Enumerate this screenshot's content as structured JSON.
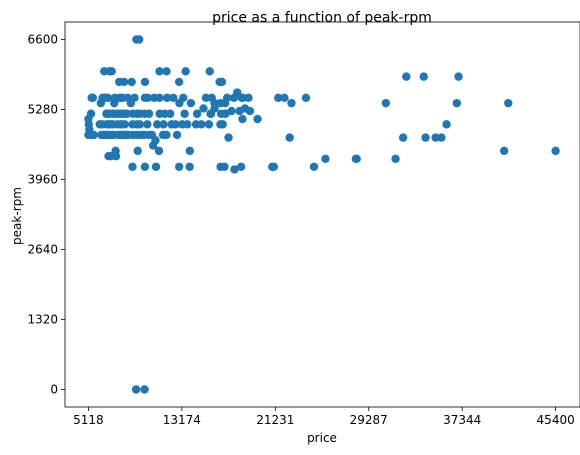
{
  "chart_data": {
    "type": "scatter",
    "title": "price as a function of peak-rpm",
    "xlabel": "price",
    "ylabel": "peak-rpm",
    "xticks": [
      5118,
      13174,
      21231,
      29287,
      37344,
      45400
    ],
    "yticks": [
      0,
      1320,
      2640,
      3960,
      5280,
      6600
    ],
    "xlim": [
      3100,
      47500
    ],
    "ylim": [
      -330,
      6930
    ],
    "grid": false,
    "marker_color": "#1f77b4",
    "points": [
      [
        5118,
        5100
      ],
      [
        5118,
        4800
      ],
      [
        5151,
        5000
      ],
      [
        5195,
        4900
      ],
      [
        5348,
        5200
      ],
      [
        5389,
        4800
      ],
      [
        5399,
        5500
      ],
      [
        5499,
        5500
      ],
      [
        5572,
        4800
      ],
      [
        6095,
        5000
      ],
      [
        6189,
        5400
      ],
      [
        6229,
        4800
      ],
      [
        6295,
        5000
      ],
      [
        6338,
        5500
      ],
      [
        6377,
        4800
      ],
      [
        6479,
        6000
      ],
      [
        6488,
        5500
      ],
      [
        6529,
        4800
      ],
      [
        6575,
        5500
      ],
      [
        6649,
        4800
      ],
      [
        6669,
        5200
      ],
      [
        6692,
        5000
      ],
      [
        6695,
        4800
      ],
      [
        6785,
        5200
      ],
      [
        6795,
        5500
      ],
      [
        6849,
        4400
      ],
      [
        6855,
        5000
      ],
      [
        6918,
        4800
      ],
      [
        6938,
        6000
      ],
      [
        6989,
        5200
      ],
      [
        7053,
        4400
      ],
      [
        7099,
        5000
      ],
      [
        7126,
        6000
      ],
      [
        7129,
        4800
      ],
      [
        7198,
        5000
      ],
      [
        7295,
        5200
      ],
      [
        7299,
        4800
      ],
      [
        7349,
        5400
      ],
      [
        7395,
        5500
      ],
      [
        7463,
        4500
      ],
      [
        7499,
        4400
      ],
      [
        7603,
        5200
      ],
      [
        7609,
        5000
      ],
      [
        7689,
        4800
      ],
      [
        7738,
        5200
      ],
      [
        7775,
        5800
      ],
      [
        7788,
        4800
      ],
      [
        7799,
        5500
      ],
      [
        7895,
        5000
      ],
      [
        7898,
        5200
      ],
      [
        7957,
        4800
      ],
      [
        7975,
        5500
      ],
      [
        7995,
        5200
      ],
      [
        7999,
        5000
      ],
      [
        8013,
        4800
      ],
      [
        8058,
        5500
      ],
      [
        8189,
        4800
      ],
      [
        8195,
        5800
      ],
      [
        8238,
        5200
      ],
      [
        8249,
        5000
      ],
      [
        8358,
        4800
      ],
      [
        8449,
        5200
      ],
      [
        8495,
        4800
      ],
      [
        8499,
        5500
      ],
      [
        8558,
        4800
      ],
      [
        8778,
        5400
      ],
      [
        8845,
        5800
      ],
      [
        8916,
        4200
      ],
      [
        8921,
        5000
      ],
      [
        8948,
        5200
      ],
      [
        8949,
        4800
      ],
      [
        9095,
        5500
      ],
      [
        9233,
        0
      ],
      [
        9258,
        6600
      ],
      [
        9279,
        4800
      ],
      [
        9295,
        5000
      ],
      [
        9298,
        5200
      ],
      [
        9370,
        4500
      ],
      [
        9495,
        6600
      ],
      [
        9538,
        5200
      ],
      [
        9549,
        5000
      ],
      [
        9639,
        4800
      ],
      [
        9895,
        4800
      ],
      [
        9959,
        0
      ],
      [
        9960,
        5200
      ],
      [
        9980,
        5500
      ],
      [
        9989,
        4200
      ],
      [
        9995,
        5800
      ],
      [
        10198,
        5000
      ],
      [
        10245,
        5500
      ],
      [
        10295,
        4800
      ],
      [
        10345,
        5200
      ],
      [
        10595,
        4800
      ],
      [
        10698,
        4600
      ],
      [
        10795,
        5500
      ],
      [
        10898,
        4700
      ],
      [
        10945,
        4200
      ],
      [
        11048,
        5000
      ],
      [
        11199,
        4500
      ],
      [
        11245,
        6000
      ],
      [
        11248,
        5500
      ],
      [
        11259,
        5200
      ],
      [
        11549,
        4800
      ],
      [
        11595,
        5000
      ],
      [
        11694,
        5200
      ],
      [
        11845,
        4800
      ],
      [
        11850,
        6000
      ],
      [
        11900,
        5500
      ],
      [
        12170,
        5200
      ],
      [
        12290,
        5000
      ],
      [
        12440,
        5500
      ],
      [
        12629,
        5000
      ],
      [
        12764,
        4800
      ],
      [
        12940,
        5800
      ],
      [
        12945,
        4200
      ],
      [
        12964,
        5400
      ],
      [
        13200,
        5000
      ],
      [
        13295,
        5500
      ],
      [
        13415,
        5200
      ],
      [
        13499,
        6000
      ],
      [
        13645,
        5000
      ],
      [
        13845,
        4200
      ],
      [
        13860,
        4500
      ],
      [
        13950,
        5400
      ],
      [
        14399,
        5000
      ],
      [
        14489,
        5200
      ],
      [
        14869,
        5000
      ],
      [
        15040,
        5300
      ],
      [
        15250,
        5500
      ],
      [
        15510,
        5000
      ],
      [
        15580,
        6000
      ],
      [
        15645,
        5200
      ],
      [
        15690,
        5200
      ],
      [
        15750,
        5500
      ],
      [
        15985,
        5400
      ],
      [
        15998,
        5300
      ],
      [
        16430,
        5800
      ],
      [
        16500,
        5000
      ],
      [
        16503,
        5400
      ],
      [
        16515,
        4200
      ],
      [
        16558,
        5200
      ],
      [
        16630,
        5800
      ],
      [
        16695,
        5000
      ],
      [
        16845,
        4200
      ],
      [
        16900,
        5400
      ],
      [
        16925,
        5200
      ],
      [
        17075,
        5500
      ],
      [
        17199,
        4750
      ],
      [
        17450,
        5250
      ],
      [
        17669,
        5500
      ],
      [
        17710,
        4150
      ],
      [
        17950,
        5600
      ],
      [
        18150,
        5250
      ],
      [
        18280,
        4200
      ],
      [
        18344,
        5500
      ],
      [
        18399,
        5100
      ],
      [
        18420,
        5500
      ],
      [
        18620,
        5300
      ],
      [
        18920,
        5500
      ],
      [
        19045,
        5250
      ],
      [
        19699,
        5100
      ],
      [
        20970,
        4200
      ],
      [
        21105,
        4200
      ],
      [
        21485,
        5500
      ],
      [
        22018,
        5500
      ],
      [
        22470,
        4750
      ],
      [
        22625,
        5400
      ],
      [
        23875,
        5500
      ],
      [
        24565,
        4200
      ],
      [
        25552,
        4350
      ],
      [
        28176,
        4350
      ],
      [
        28248,
        4350
      ],
      [
        30760,
        5400
      ],
      [
        31600,
        4350
      ],
      [
        32250,
        4750
      ],
      [
        32528,
        5900
      ],
      [
        34028,
        5900
      ],
      [
        34184,
        4750
      ],
      [
        35056,
        4750
      ],
      [
        35550,
        4750
      ],
      [
        36000,
        5000
      ],
      [
        36880,
        5400
      ],
      [
        37028,
        5900
      ],
      [
        40960,
        4500
      ],
      [
        41315,
        5400
      ],
      [
        45400,
        4500
      ]
    ]
  }
}
